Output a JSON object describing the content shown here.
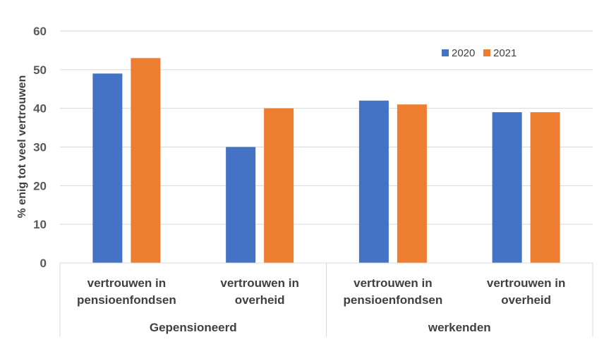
{
  "chart_data": {
    "type": "bar",
    "ylabel": "% enig tot veel vertrouwen",
    "ylim": [
      0,
      60
    ],
    "yticks": [
      0,
      10,
      20,
      30,
      40,
      50,
      60
    ],
    "grid": true,
    "legend_position": "top-right",
    "groups": [
      {
        "label": "Gepensioneerd",
        "categories": [
          "vertrouwen in pensioenfondsen",
          "vertrouwen in overheid"
        ]
      },
      {
        "label": "werkenden",
        "categories": [
          "vertrouwen in pensioenfondsen",
          "vertrouwen in overheid"
        ]
      }
    ],
    "category_lines": [
      [
        "vertrouwen in",
        "pensioenfondsen"
      ],
      [
        "vertrouwen in",
        "overheid"
      ],
      [
        "vertrouwen in",
        "pensioenfondsen"
      ],
      [
        "vertrouwen in",
        "overheid"
      ]
    ],
    "series": [
      {
        "name": "2020",
        "color": "#4472C4",
        "values": [
          49,
          30,
          42,
          39
        ]
      },
      {
        "name": "2021",
        "color": "#ED7D31",
        "values": [
          53,
          40,
          41,
          39
        ]
      }
    ]
  }
}
